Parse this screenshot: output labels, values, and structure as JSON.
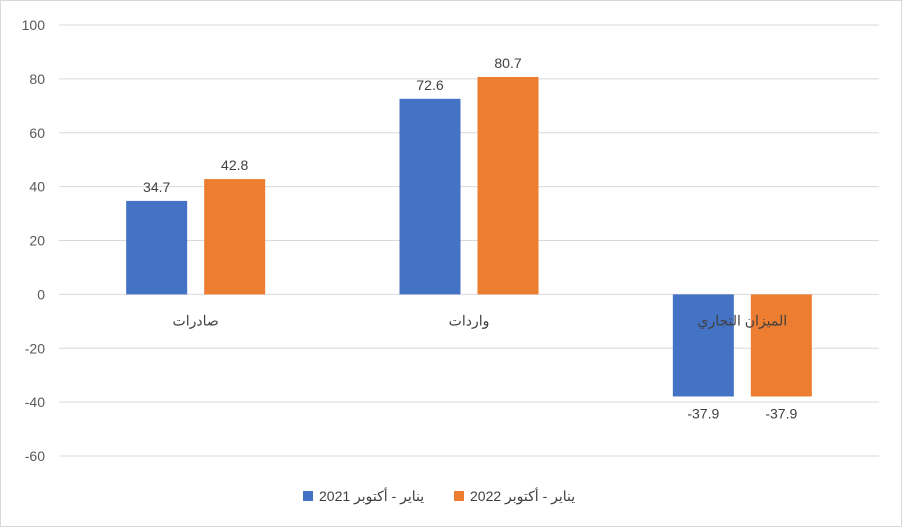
{
  "chart_data": {
    "type": "bar",
    "title": "",
    "xlabel": "",
    "ylabel": "",
    "ylim": [
      -60,
      100
    ],
    "yticks": [
      100,
      80,
      60,
      40,
      20,
      0,
      -20,
      -40,
      -60
    ],
    "categories": [
      "صادرات",
      "واردات",
      "الميزان التجاري"
    ],
    "series": [
      {
        "name": "يناير - أكتوبر 2021",
        "color": "#4472C4",
        "values": [
          34.7,
          72.6,
          -37.9
        ]
      },
      {
        "name": "يناير - أكتوبر 2022",
        "color": "#ED7D31",
        "values": [
          42.8,
          80.7,
          -37.9
        ]
      }
    ],
    "grid": true,
    "legend_position": "bottom"
  }
}
